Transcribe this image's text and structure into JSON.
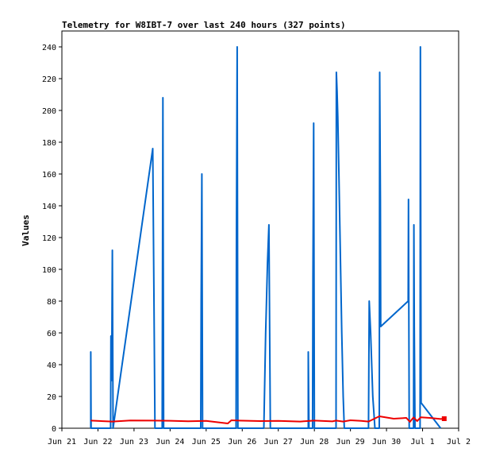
{
  "chart_data": {
    "type": "line",
    "title": "Telemetry for W8IBT-7 over last 240 hours (327 points)",
    "xlabel": "",
    "ylabel": "Values",
    "x_type": "date",
    "xlim": [
      "Jun 21",
      "Jul 2"
    ],
    "x_ticks": [
      "Jun 21",
      "Jun 22",
      "Jun 23",
      "Jun 24",
      "Jun 25",
      "Jun 26",
      "Jun 27",
      "Jun 28",
      "Jun 29",
      "Jun 30",
      "Jul 1",
      "Jul 2"
    ],
    "ylim": [
      0,
      250
    ],
    "y_ticks": [
      0,
      20,
      40,
      60,
      80,
      100,
      120,
      140,
      160,
      180,
      200,
      220,
      240
    ],
    "grid": false,
    "legend": "none",
    "series": [
      {
        "color": "#0066cc",
        "points": [
          [
            21.8,
            0
          ],
          [
            21.8,
            48
          ],
          [
            21.81,
            0
          ],
          [
            22.35,
            0
          ],
          [
            22.36,
            58
          ],
          [
            22.38,
            30
          ],
          [
            22.4,
            112
          ],
          [
            22.42,
            0
          ],
          [
            23.52,
            176
          ],
          [
            23.55,
            90
          ],
          [
            23.58,
            0
          ],
          [
            23.78,
            0
          ],
          [
            23.79,
            98
          ],
          [
            23.8,
            208
          ],
          [
            23.82,
            0
          ],
          [
            24.85,
            0
          ],
          [
            24.86,
            80
          ],
          [
            24.88,
            160
          ],
          [
            24.9,
            0
          ],
          [
            25.83,
            0
          ],
          [
            25.84,
            122
          ],
          [
            25.86,
            240
          ],
          [
            25.88,
            0
          ],
          [
            26.6,
            0
          ],
          [
            26.65,
            60
          ],
          [
            26.7,
            104
          ],
          [
            26.74,
            128
          ],
          [
            26.78,
            0
          ],
          [
            27.83,
            0
          ],
          [
            27.83,
            48
          ],
          [
            27.85,
            0
          ],
          [
            27.95,
            0
          ],
          [
            27.96,
            96
          ],
          [
            27.98,
            192
          ],
          [
            28.0,
            0
          ],
          [
            28.6,
            0
          ],
          [
            28.61,
            224
          ],
          [
            28.63,
            212
          ],
          [
            28.65,
            196
          ],
          [
            28.68,
            160
          ],
          [
            28.72,
            110
          ],
          [
            28.76,
            60
          ],
          [
            28.8,
            20
          ],
          [
            28.83,
            0
          ],
          [
            29.5,
            0
          ],
          [
            29.52,
            80
          ],
          [
            29.56,
            60
          ],
          [
            29.62,
            20
          ],
          [
            29.68,
            0
          ],
          [
            29.8,
            0
          ],
          [
            29.81,
            224
          ],
          [
            29.83,
            144
          ],
          [
            29.84,
            64
          ],
          [
            30.6,
            80
          ],
          [
            30.61,
            144
          ],
          [
            30.63,
            0
          ],
          [
            30.75,
            0
          ],
          [
            30.76,
            128
          ],
          [
            30.77,
            64
          ],
          [
            30.79,
            0
          ],
          [
            30.93,
            0
          ],
          [
            30.94,
            240
          ],
          [
            30.96,
            16
          ],
          [
            31.5,
            0
          ]
        ]
      },
      {
        "color": "#ee0000",
        "points": [
          [
            21.8,
            4.8
          ],
          [
            22.4,
            4.2
          ],
          [
            22.9,
            4.9
          ],
          [
            23.5,
            4.8
          ],
          [
            24.0,
            4.7
          ],
          [
            24.5,
            4.4
          ],
          [
            25.0,
            4.6
          ],
          [
            25.6,
            3.0
          ],
          [
            25.7,
            5.0
          ],
          [
            25.9,
            4.8
          ],
          [
            26.5,
            4.5
          ],
          [
            27.0,
            4.6
          ],
          [
            27.6,
            4.2
          ],
          [
            28.0,
            4.8
          ],
          [
            28.5,
            4.3
          ],
          [
            28.6,
            4.8
          ],
          [
            28.8,
            4.2
          ],
          [
            29.0,
            5.0
          ],
          [
            29.3,
            4.6
          ],
          [
            29.5,
            4.2
          ],
          [
            29.8,
            7.5
          ],
          [
            30.2,
            6.0
          ],
          [
            30.55,
            6.5
          ],
          [
            30.65,
            4.0
          ],
          [
            30.75,
            6.8
          ],
          [
            30.85,
            4.5
          ],
          [
            30.95,
            6.9
          ],
          [
            31.2,
            6.5
          ],
          [
            31.5,
            5.8
          ],
          [
            31.6,
            6.0
          ]
        ]
      }
    ]
  }
}
